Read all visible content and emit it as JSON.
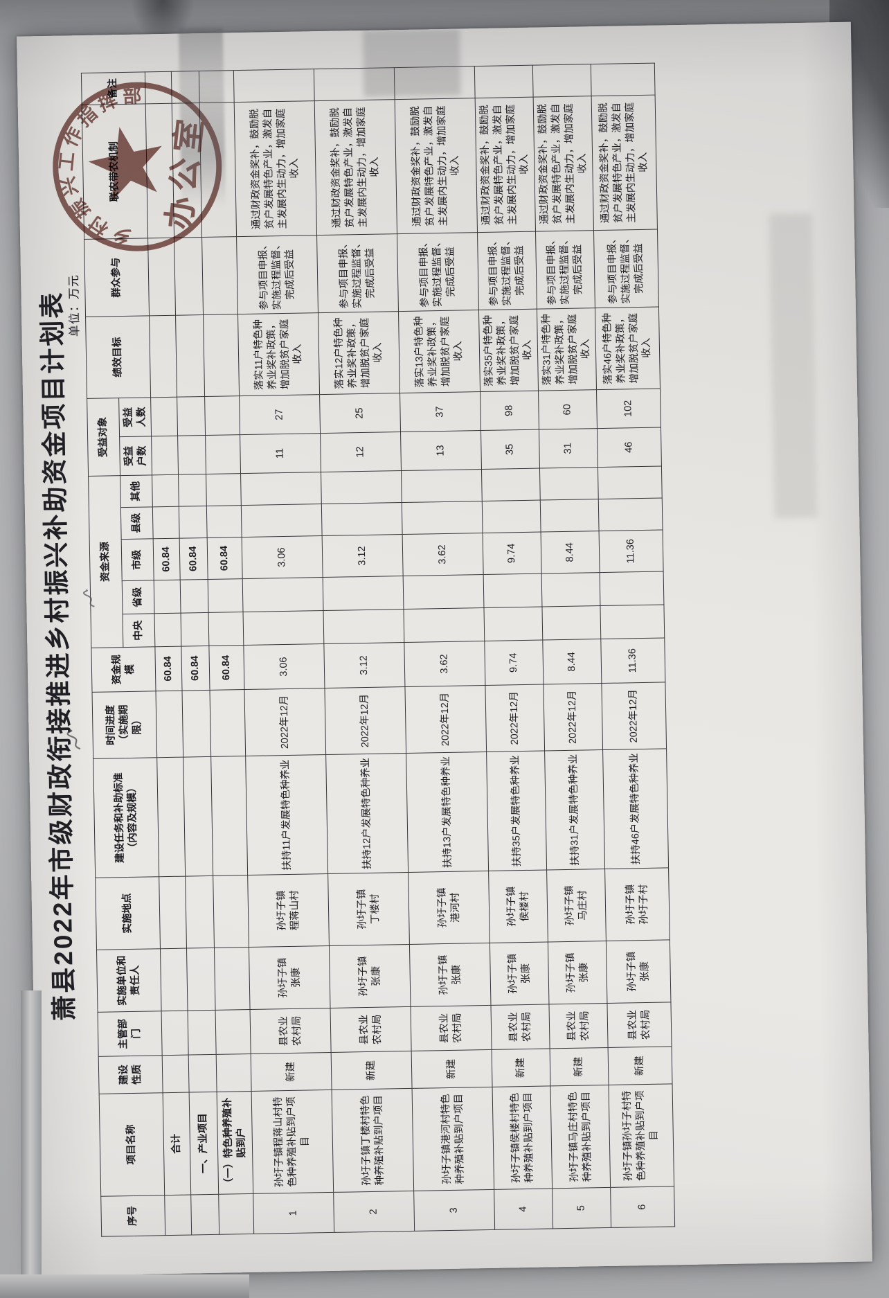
{
  "page": {
    "title": "萧县2022年市级财政衔接推进乡村振兴补助资金项目计划表",
    "unit_label": "单位：万元"
  },
  "colors": {
    "seal": "#74423c",
    "paper": "#eae8e5",
    "background": "#aeafb1",
    "ink": "#1d1d22",
    "grid_line": "#36363b"
  },
  "icons": {
    "seal_star": "five-pointed-star",
    "pen_mark": "small-gray-pen-scribble"
  },
  "stamp": {
    "ring_text_visible": "乡村振兴工作指挥部",
    "center_text": "办公室"
  },
  "table": {
    "head": {
      "seq": "序号",
      "name": "项目名称",
      "nature": "建设\n性质",
      "dept": "主管部\n门",
      "impl_unit": "实施单位和\n责任人",
      "location": "实施地点",
      "task": "建设任务和补助标准\n（内容及规模）",
      "schedule": "时间进度\n（实施期\n限）",
      "fund_scale": "资金规模",
      "fund_source": "资金来源",
      "central": "中央",
      "provincial": "省级",
      "municipal": "市级",
      "county": "县级",
      "other": "其他",
      "beneficiary": "受益对象",
      "households": "受益\n户数",
      "people": "受益\n人数",
      "performance": "绩效目标",
      "participation": "群众参与",
      "mechanism": "联农带农机制",
      "remarks": "备注"
    },
    "rows": [
      {
        "kind": "total",
        "cells": [
          "",
          "合计",
          "",
          "",
          "",
          "",
          "",
          "",
          "60.84",
          "",
          "",
          "60.84",
          "",
          "",
          "",
          "",
          "",
          "",
          "",
          ""
        ]
      },
      {
        "kind": "group",
        "cells": [
          "",
          "一、产业项目",
          "",
          "",
          "",
          "",
          "",
          "",
          "60.84",
          "",
          "",
          "60.84",
          "",
          "",
          "",
          "",
          "",
          "",
          "",
          ""
        ]
      },
      {
        "kind": "subgroup",
        "cells": [
          "",
          "（一）特色种养殖补贴到户",
          "",
          "",
          "",
          "",
          "",
          "",
          "60.84",
          "",
          "",
          "60.84",
          "",
          "",
          "",
          "",
          "",
          "",
          "",
          ""
        ]
      },
      {
        "kind": "project",
        "cells": [
          "1",
          "孙圩子镇程蒋山村特色种养殖补贴到户项目",
          "新建",
          "县农业\n农村局",
          "孙圩子镇\n张康",
          "孙圩子镇\n程蒋山村",
          "扶持11户发展特色种养业",
          "2022年12月",
          "3.06",
          "",
          "",
          "3.06",
          "",
          "",
          "11",
          "27",
          "落实11户特色种养业奖补政策，增加脱贫户家庭收入",
          "参与项目申报、实施过程监督、完成后受益",
          "通过财政资金奖补，鼓励脱贫户发展特色产业，激发自主发展内生动力，增加家庭收入",
          ""
        ]
      },
      {
        "kind": "project",
        "cells": [
          "2",
          "孙圩子镇丁楼村特色种养殖补贴到户项目",
          "新建",
          "县农业\n农村局",
          "孙圩子镇\n张康",
          "孙圩子镇\n丁楼村",
          "扶持12户发展特色种养业",
          "2022年12月",
          "3.12",
          "",
          "",
          "3.12",
          "",
          "",
          "12",
          "25",
          "落实12户特色种养业奖补政策，增加脱贫户家庭收入",
          "参与项目申报、实施过程监督、完成后受益",
          "通过财政资金奖补，鼓励脱贫户发展特色产业，激发自主发展内生动力，增加家庭收入",
          ""
        ]
      },
      {
        "kind": "project",
        "cells": [
          "3",
          "孙圩子镇港河村特色种养殖补贴到户项目",
          "新建",
          "县农业\n农村局",
          "孙圩子镇\n张康",
          "孙圩子镇\n港河村",
          "扶持13户发展特色种养业",
          "2022年12月",
          "3.62",
          "",
          "",
          "3.62",
          "",
          "",
          "13",
          "37",
          "落实13户特色种养业奖补政策，增加脱贫户家庭收入",
          "参与项目申报、实施过程监督、完成后受益",
          "通过财政资金奖补，鼓励脱贫户发展特色产业，激发自主发展内生动力，增加家庭收入",
          ""
        ]
      },
      {
        "kind": "project",
        "cells": [
          "4",
          "孙圩子镇侯楼村特色种养殖补贴到户项目",
          "新建",
          "县农业\n农村局",
          "孙圩子镇\n张康",
          "孙圩子镇\n侯楼村",
          "扶持35户发展特色种养业",
          "2022年12月",
          "9.74",
          "",
          "",
          "9.74",
          "",
          "",
          "35",
          "98",
          "落实35户特色种养业奖补政策，增加脱贫户家庭收入",
          "参与项目申报、实施过程监督、完成后受益",
          "通过财政资金奖补，鼓励脱贫户发展特色产业，激发自主发展内生动力，增加家庭收入",
          ""
        ]
      },
      {
        "kind": "project",
        "cells": [
          "5",
          "孙圩子镇马庄村特色种养殖补贴到户项目",
          "新建",
          "县农业\n农村局",
          "孙圩子镇\n张康",
          "孙圩子镇\n马庄村",
          "扶持31户发展特色种养业",
          "2022年12月",
          "8.44",
          "",
          "",
          "8.44",
          "",
          "",
          "31",
          "60",
          "落实31户特色种养业奖补政策，增加脱贫户家庭收入",
          "参与项目申报、实施过程监督、完成后受益",
          "通过财政资金奖补，鼓励脱贫户发展特色产业，激发自主发展内生动力，增加家庭收入",
          ""
        ]
      },
      {
        "kind": "project",
        "cells": [
          "6",
          "孙圩子镇孙圩子村特色种养殖补贴到户项目",
          "新建",
          "县农业\n农村局",
          "孙圩子镇\n张康",
          "孙圩子镇\n孙圩子村",
          "扶持46户发展特色种养业",
          "2022年12月",
          "11.36",
          "",
          "",
          "11.36",
          "",
          "",
          "46",
          "102",
          "落实46户特色种养业奖补政策，增加脱贫户家庭收入",
          "参与项目申报、实施过程监督、完成后受益",
          "通过财政资金奖补，鼓励脱贫户发展特色产业，激发自主发展内生动力，增加家庭收入",
          ""
        ]
      }
    ]
  }
}
